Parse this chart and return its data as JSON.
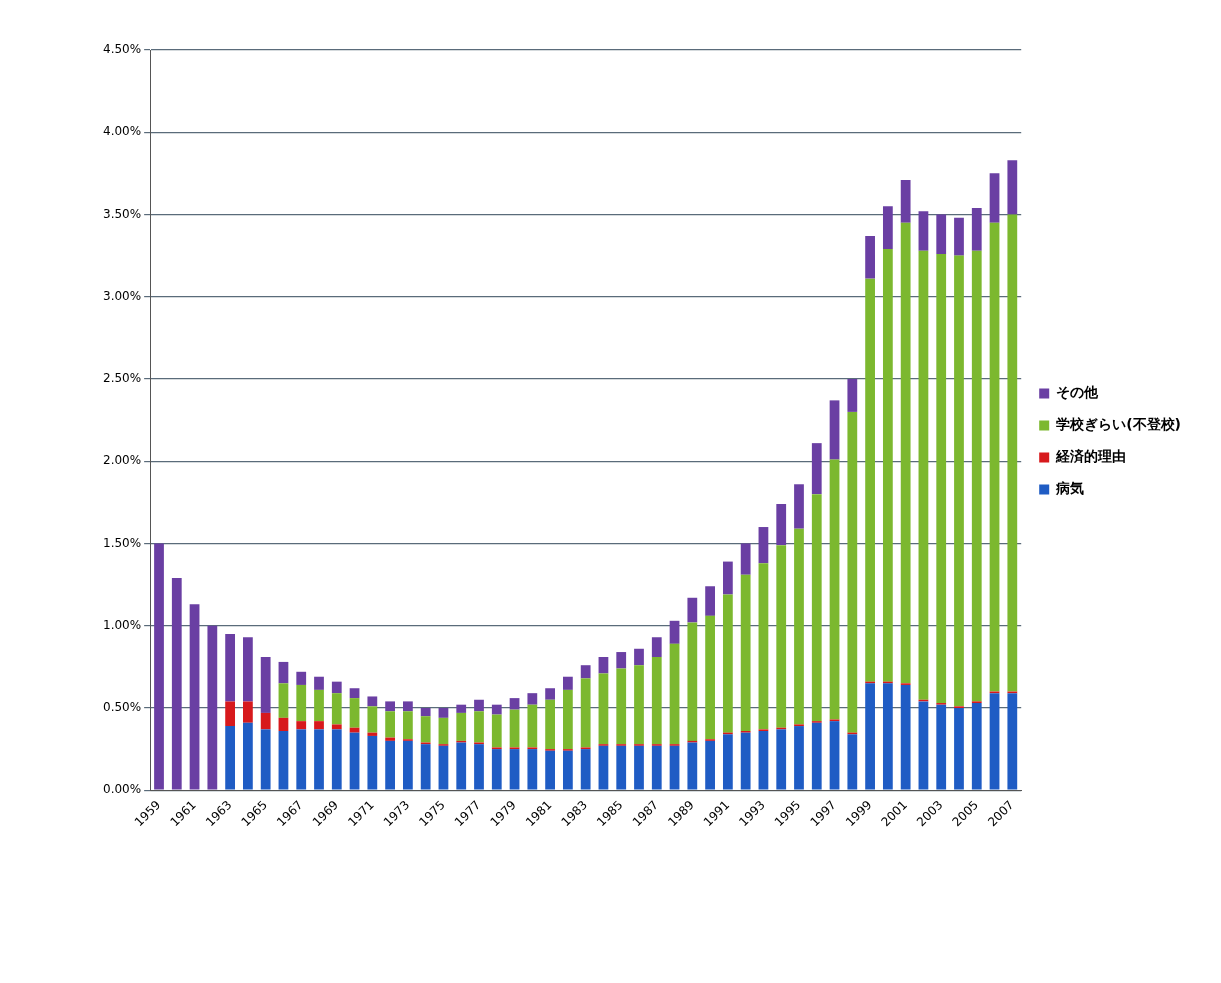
{
  "chart_data": {
    "type": "bar",
    "stacked": true,
    "legend": "right",
    "grid": "y",
    "categories": [
      "1959",
      null,
      "1961",
      null,
      "1963",
      null,
      "1965",
      null,
      "1967",
      null,
      "1969",
      null,
      "1971",
      null,
      "1973",
      null,
      "1975",
      null,
      "1977",
      null,
      "1979",
      null,
      "1981",
      null,
      "1983",
      null,
      "1985",
      null,
      "1987",
      null,
      "1989",
      null,
      "1991",
      null,
      "1993",
      null,
      "1995",
      null,
      "1997",
      null,
      "1999",
      null,
      "2001",
      null,
      "2003",
      null,
      "2005",
      null,
      "2007"
    ],
    "ylim": [
      0,
      4.5
    ],
    "yticks": [
      {
        "value": 0,
        "label": "0.00%"
      },
      {
        "value": 0.5,
        "label": "0.50%"
      },
      {
        "value": 1,
        "label": "1.00%"
      },
      {
        "value": 1.5,
        "label": "1.50%"
      },
      {
        "value": 2,
        "label": "2.00%"
      },
      {
        "value": 2.5,
        "label": "2.50%"
      },
      {
        "value": 3,
        "label": "3.00%"
      },
      {
        "value": 3.5,
        "label": "3.50%"
      },
      {
        "value": 4,
        "label": "4.00%"
      },
      {
        "value": 4.5,
        "label": "4.50%"
      }
    ],
    "series": [
      {
        "name": "病気",
        "color": "#1f5cc4",
        "values": [
          null,
          null,
          null,
          null,
          0.39,
          0.41,
          0.37,
          0.36,
          0.37,
          0.37,
          0.37,
          0.35,
          0.33,
          0.3,
          0.3,
          0.28,
          0.27,
          0.29,
          0.28,
          0.25,
          0.25,
          0.25,
          0.24,
          0.24,
          0.25,
          0.27,
          0.27,
          0.27,
          0.27,
          0.27,
          0.29,
          0.3,
          0.34,
          0.35,
          0.36,
          0.37,
          0.39,
          0.41,
          0.42,
          0.34,
          0.65,
          0.65,
          0.64,
          0.54,
          0.52,
          0.5,
          0.53,
          0.59,
          0.59
        ]
      },
      {
        "name": "経済的理由",
        "color": "#d7191c",
        "values": [
          null,
          null,
          null,
          null,
          0.15,
          0.13,
          0.1,
          0.08,
          0.05,
          0.05,
          0.03,
          0.03,
          0.02,
          0.02,
          0.01,
          0.01,
          0.01,
          0.01,
          0.01,
          0.01,
          0.01,
          0.01,
          0.01,
          0.01,
          0.01,
          0.01,
          0.01,
          0.01,
          0.01,
          0.01,
          0.01,
          0.01,
          0.01,
          0.01,
          0.01,
          0.01,
          0.01,
          0.01,
          0.01,
          0.01,
          0.01,
          0.01,
          0.01,
          0.01,
          0.01,
          0.01,
          0.01,
          0.01,
          0.01
        ]
      },
      {
        "name": "学校ぎらい(不登校)",
        "color": "#7cb82f",
        "values": [
          null,
          null,
          null,
          null,
          null,
          null,
          null,
          0.21,
          0.22,
          0.19,
          0.19,
          0.18,
          0.16,
          0.16,
          0.17,
          0.16,
          0.16,
          0.17,
          0.19,
          0.2,
          0.23,
          0.26,
          0.3,
          0.36,
          0.42,
          0.43,
          0.46,
          0.48,
          0.53,
          0.61,
          0.72,
          0.75,
          0.84,
          0.95,
          1.01,
          1.11,
          1.19,
          1.38,
          1.58,
          1.95,
          2.45,
          2.63,
          2.8,
          2.73,
          2.73,
          2.74,
          2.74,
          2.85,
          2.9
        ]
      },
      {
        "name": "その他",
        "color": "#6a3fa3",
        "values": [
          1.5,
          1.29,
          1.13,
          1.0,
          0.41,
          0.39,
          0.34,
          0.13,
          0.08,
          0.08,
          0.07,
          0.06,
          0.06,
          0.06,
          0.06,
          0.05,
          0.06,
          0.05,
          0.07,
          0.06,
          0.07,
          0.07,
          0.07,
          0.08,
          0.08,
          0.1,
          0.1,
          0.1,
          0.12,
          0.14,
          0.15,
          0.18,
          0.2,
          0.19,
          0.22,
          0.25,
          0.27,
          0.31,
          0.36,
          0.2,
          0.26,
          0.26,
          0.26,
          0.24,
          0.24,
          0.23,
          0.26,
          0.3,
          0.33
        ]
      }
    ]
  }
}
